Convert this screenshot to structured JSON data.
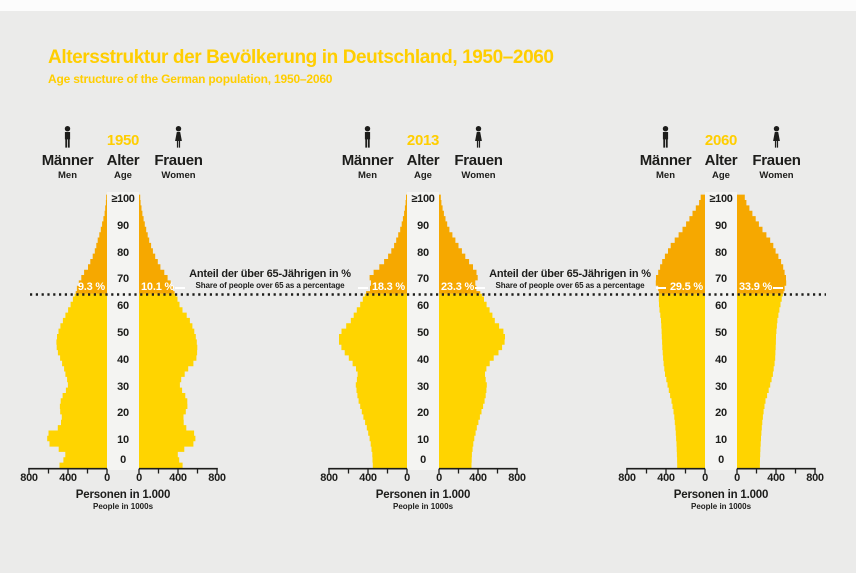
{
  "title": "Altersstruktur der Bevölkerung in Deutschland, 1950–2060",
  "subtitle": "Age structure of the German population, 1950–2060",
  "colors": {
    "background": "#EBEBEA",
    "bar_yellow": "#FFD400",
    "bar_orange_over65": "#F6A800",
    "heading_yellow": "#FFCE00",
    "text_black": "#1D1D1B",
    "column_white": "#F4F4F2",
    "percent_label_white": "#FFFFFF"
  },
  "labels": {
    "men": "Männer",
    "men_en": "Men",
    "age": "Alter",
    "age_en": "Age",
    "women": "Frauen",
    "women_en": "Women",
    "axis_caption": "Personen in 1.000",
    "axis_caption_en": "People in 1000s",
    "annotation": "Anteil der über 65-Jährigen in %",
    "annotation_en": "Share of people over 65 as a percentage"
  },
  "age_ticks": [
    "≥100",
    "90",
    "80",
    "70",
    "60",
    "50",
    "40",
    "30",
    "20",
    "10",
    "0"
  ],
  "x_ticks_left": [
    "800",
    "400",
    "0"
  ],
  "x_ticks_right": [
    "0",
    "400",
    "800"
  ],
  "chart_data": {
    "type": "population-pyramid (paired horizontal bar)",
    "title": "Altersstruktur der Bevölkerung in Deutschland, 1950–2060",
    "unit": "Personen in 1.000 / People in 1000s",
    "x_axis": {
      "max": 800,
      "tick_step_labeled": 400,
      "tick_step_minor": 200
    },
    "age_axis": {
      "min": 0,
      "max": 100,
      "top_category": "≥100",
      "tick_step": 10
    },
    "over_65_marker": {
      "age": 65,
      "style": "dotted line across all pyramids"
    },
    "points_format": [
      "age",
      "male_thousands",
      "female_thousands"
    ],
    "pyramids": [
      {
        "year": "1950",
        "share_over_65_men": "9.3 %",
        "share_over_65_women": "10.1 %",
        "points": [
          [
            0,
            505,
            465
          ],
          [
            2,
            470,
            430
          ],
          [
            4,
            425,
            395
          ],
          [
            6,
            430,
            400
          ],
          [
            8,
            560,
            530
          ],
          [
            10,
            620,
            585
          ],
          [
            13,
            600,
            565
          ],
          [
            15,
            505,
            485
          ],
          [
            18,
            455,
            445
          ],
          [
            21,
            480,
            480
          ],
          [
            24,
            485,
            505
          ],
          [
            27,
            455,
            475
          ],
          [
            30,
            405,
            425
          ],
          [
            32,
            398,
            415
          ],
          [
            34,
            420,
            450
          ],
          [
            37,
            440,
            505
          ],
          [
            40,
            470,
            585
          ],
          [
            44,
            515,
            600
          ],
          [
            48,
            520,
            590
          ],
          [
            52,
            490,
            560
          ],
          [
            56,
            440,
            510
          ],
          [
            60,
            385,
            425
          ],
          [
            63,
            350,
            395
          ],
          [
            65,
            325,
            370
          ],
          [
            68,
            300,
            340
          ],
          [
            70,
            278,
            310
          ],
          [
            73,
            235,
            260
          ],
          [
            75,
            195,
            220
          ],
          [
            78,
            160,
            180
          ],
          [
            80,
            133,
            152
          ],
          [
            85,
            95,
            105
          ],
          [
            90,
            56,
            66
          ],
          [
            95,
            25,
            35
          ],
          [
            100,
            8,
            12
          ]
        ]
      },
      {
        "year": "2013",
        "share_over_65_men": "18.3 %",
        "share_over_65_women": "23.3 %",
        "points": [
          [
            0,
            350,
            332
          ],
          [
            5,
            356,
            337
          ],
          [
            10,
            376,
            356
          ],
          [
            15,
            412,
            388
          ],
          [
            20,
            456,
            428
          ],
          [
            25,
            496,
            468
          ],
          [
            28,
            515,
            485
          ],
          [
            31,
            525,
            490
          ],
          [
            34,
            508,
            474
          ],
          [
            36,
            505,
            470
          ],
          [
            40,
            576,
            536
          ],
          [
            44,
            660,
            635
          ],
          [
            48,
            710,
            685
          ],
          [
            51,
            672,
            660
          ],
          [
            55,
            576,
            572
          ],
          [
            58,
            532,
            535
          ],
          [
            61,
            480,
            488
          ],
          [
            64,
            440,
            448
          ],
          [
            66,
            412,
            415
          ],
          [
            68,
            346,
            352
          ],
          [
            70,
            392,
            392
          ],
          [
            72,
            376,
            402
          ],
          [
            74,
            310,
            368
          ],
          [
            76,
            258,
            330
          ],
          [
            78,
            212,
            288
          ],
          [
            80,
            176,
            252
          ],
          [
            83,
            132,
            200
          ],
          [
            86,
            100,
            152
          ],
          [
            90,
            60,
            92
          ],
          [
            95,
            30,
            50
          ],
          [
            100,
            10,
            18
          ]
        ]
      },
      {
        "year": "2060",
        "share_over_65_men": "29.5 %",
        "share_over_65_women": "33.9 %",
        "points": [
          [
            0,
            284,
            234
          ],
          [
            5,
            288,
            238
          ],
          [
            10,
            294,
            244
          ],
          [
            15,
            304,
            254
          ],
          [
            20,
            318,
            268
          ],
          [
            25,
            344,
            292
          ],
          [
            30,
            378,
            334
          ],
          [
            35,
            410,
            368
          ],
          [
            40,
            428,
            390
          ],
          [
            45,
            438,
            397
          ],
          [
            50,
            444,
            401
          ],
          [
            55,
            451,
            414
          ],
          [
            60,
            470,
            440
          ],
          [
            63,
            474,
            458
          ],
          [
            65,
            471,
            474
          ],
          [
            67,
            480,
            488
          ],
          [
            69,
            505,
            505
          ],
          [
            71,
            503,
            503
          ],
          [
            73,
            480,
            488
          ],
          [
            75,
            461,
            474
          ],
          [
            78,
            428,
            442
          ],
          [
            80,
            394,
            408
          ],
          [
            83,
            352,
            372
          ],
          [
            85,
            311,
            341
          ],
          [
            88,
            250,
            282
          ],
          [
            90,
            211,
            241
          ],
          [
            93,
            160,
            192
          ],
          [
            95,
            128,
            158
          ],
          [
            98,
            78,
            112
          ],
          [
            100,
            44,
            80
          ]
        ]
      }
    ]
  }
}
